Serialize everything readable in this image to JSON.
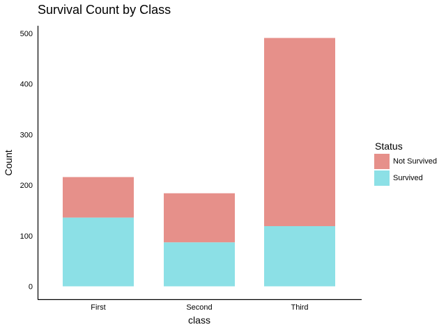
{
  "chart_data": {
    "type": "bar",
    "stacked": true,
    "title": "Survival Count by Class",
    "xlabel": "class",
    "ylabel": "Count",
    "categories": [
      "First",
      "Second",
      "Third"
    ],
    "series": [
      {
        "name": "Survived",
        "color": "#8ce0e6",
        "values": [
          136,
          87,
          119
        ]
      },
      {
        "name": "Not Survived",
        "color": "#e6908a",
        "values": [
          80,
          97,
          372
        ]
      }
    ],
    "ylim": [
      0,
      500
    ],
    "yticks": [
      0,
      100,
      200,
      300,
      400,
      500
    ],
    "grid": false,
    "legend": {
      "title": "Status",
      "placement": "right",
      "order": [
        "Not Survived",
        "Survived"
      ]
    }
  }
}
